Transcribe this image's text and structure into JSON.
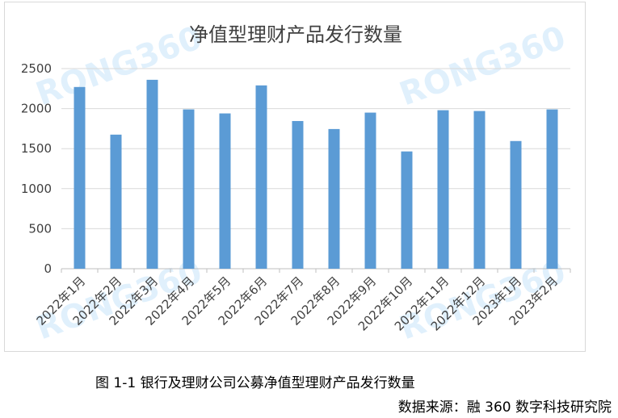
{
  "chart_data": {
    "type": "bar",
    "title": "净值型理财产品发行数量",
    "categories": [
      "2022年1月",
      "2022年2月",
      "2022年3月",
      "2022年4月",
      "2022年5月",
      "2022年6月",
      "2022年7月",
      "2022年8月",
      "2022年9月",
      "2022年10月",
      "2022年11月",
      "2022年12月",
      "2023年1月",
      "2023年2月"
    ],
    "values": [
      2270,
      1675,
      2360,
      1990,
      1940,
      2290,
      1845,
      1745,
      1950,
      1465,
      1980,
      1970,
      1595,
      1990
    ],
    "ylim": [
      0,
      2500
    ],
    "yticks": [
      0,
      500,
      1000,
      1500,
      2000,
      2500
    ],
    "grid": true,
    "bar_color": "#5b9bd5"
  },
  "watermark": "RONG360",
  "caption": "图 1-1 银行及理财公司公募净值型理财产品发行数量",
  "source": "数据来源：融 360 数字科技研究院"
}
